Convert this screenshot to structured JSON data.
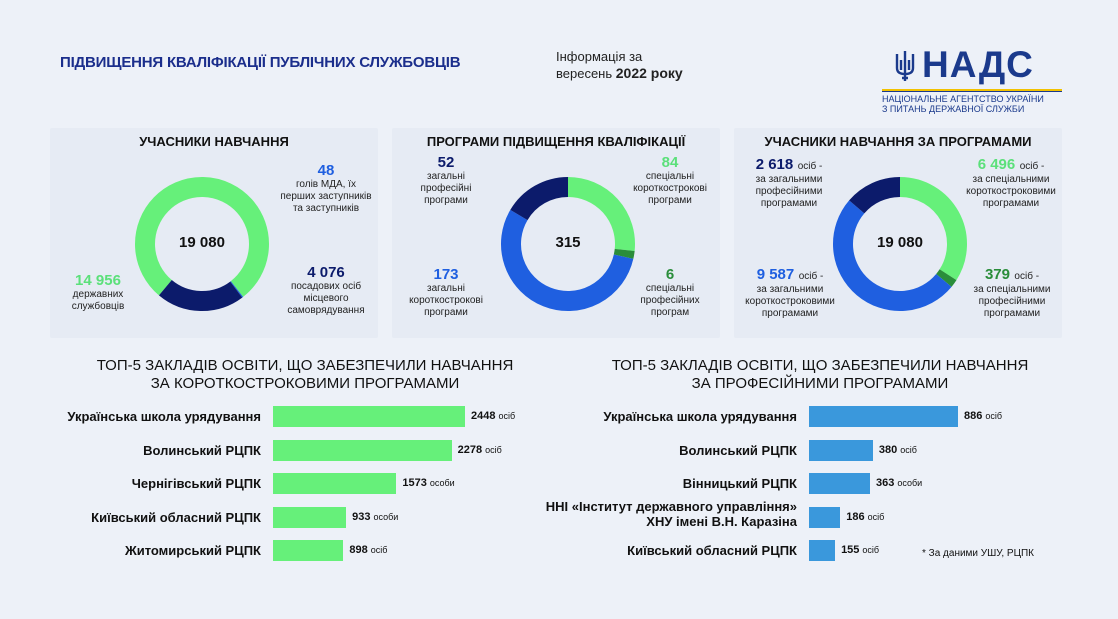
{
  "header": {
    "title": "ПІДВИЩЕННЯ КВАЛІФІКАЦІЇ ПУБЛІЧНИХ СЛУЖБОВЦІВ",
    "info_line1": "Інформація за",
    "info_line2_prefix": "вересень",
    "info_line2_bold": "2022 року"
  },
  "logo": {
    "word": "НАДС",
    "sub_line1": "НАЦІОНАЛЬНЕ АГЕНТСТВО УКРАЇНИ",
    "sub_line2": "З ПИТАНЬ ДЕРЖАВНОЇ СЛУЖБИ",
    "emblem": "trident-icon"
  },
  "colors": {
    "green": "#66f07a",
    "navy": "#0c1b6b",
    "blue": "#1f5fe0",
    "dark_green": "#2a8d3a",
    "light_blue_bar": "#3a98dc",
    "title_blue": "#1b2e8c"
  },
  "panels": {
    "participants": {
      "title": "УЧАСНИКИ НАВЧАННЯ",
      "total": "19 080",
      "items": [
        {
          "value": "48",
          "label": "голів МДА, їх перших заступників та заступників",
          "color": "#1f5fe0"
        },
        {
          "value": "4 076",
          "label": "посадових осіб місцевого самоврядування",
          "color": "#0c1b6b"
        },
        {
          "value": "14 956",
          "label": "державних службовців",
          "color": "#66f07a"
        }
      ]
    },
    "programs": {
      "title": "ПРОГРАМИ ПІДВИЩЕННЯ КВАЛІФІКАЦІЇ",
      "total": "315",
      "items": [
        {
          "value": "52",
          "label": "загальні професійні програми",
          "color": "#0c1b6b"
        },
        {
          "value": "84",
          "label": "спеціальні короткострокові програми",
          "color": "#66f07a"
        },
        {
          "value": "173",
          "label": "загальні короткострокові програми",
          "color": "#1f5fe0"
        },
        {
          "value": "6",
          "label": "спеціальні професійних програм",
          "color": "#2a8d3a"
        }
      ]
    },
    "by_programs": {
      "title": "УЧАСНИКИ НАВЧАННЯ ЗА ПРОГРАМАМИ",
      "total": "19 080",
      "unit": "осіб -",
      "items": [
        {
          "value": "2 618",
          "label": "за загальними професійними програмами",
          "color": "#0c1b6b"
        },
        {
          "value": "6 496",
          "label": "за спеціальними короткостроковими програмами",
          "color": "#66f07a"
        },
        {
          "value": "9 587",
          "label": "за загальними короткостроковими програмами",
          "color": "#1f5fe0"
        },
        {
          "value": "379",
          "label": "за спеціальними професійними програмами",
          "color": "#2a8d3a"
        }
      ]
    }
  },
  "chart_data": [
    {
      "type": "pie",
      "title": "УЧАСНИКИ НАВЧАННЯ",
      "categories": [
        "державних службовців",
        "голів МДА, їх перших заступників та заступників",
        "посадових осіб місцевого самоврядування"
      ],
      "values": [
        14956,
        48,
        4076
      ]
    },
    {
      "type": "pie",
      "title": "ПРОГРАМИ ПІДВИЩЕННЯ КВАЛІФІКАЦІЇ",
      "categories": [
        "спеціальні короткострокові програми",
        "спеціальні професійних програм",
        "загальні короткострокові програми",
        "загальні професійні програми"
      ],
      "values": [
        84,
        6,
        173,
        52
      ]
    },
    {
      "type": "pie",
      "title": "УЧАСНИКИ НАВЧАННЯ ЗА ПРОГРАМАМИ",
      "categories": [
        "за спеціальними короткостроковими програмами",
        "за спеціальними професійними програмами",
        "за загальними короткостроковими програмами",
        "за загальними професійними програмами"
      ],
      "values": [
        6496,
        379,
        9587,
        2618
      ]
    },
    {
      "type": "bar",
      "title": "ТОП-5 ЗАКЛАДІВ ОСВІТИ, ЩО ЗАБЕЗПЕЧИЛИ НАВЧАННЯ ЗА КОРОТКОСТРОКОВИМИ ПРОГРАМАМИ",
      "categories": [
        "Українська школа урядування",
        "Волинський РЦПК",
        "Чернігівський РЦПК",
        "Київський обласний РЦПК",
        "Житомирський РЦПК"
      ],
      "values": [
        2448,
        2278,
        1573,
        933,
        898
      ],
      "units": [
        "осіб",
        "осіб",
        "особи",
        "особи",
        "осіб"
      ]
    },
    {
      "type": "bar",
      "title": "ТОП-5 ЗАКЛАДІВ ОСВІТИ, ЩО ЗАБЕЗПЕЧИЛИ НАВЧАННЯ ЗА ПРОФЕСІЙНИМИ ПРОГРАМАМИ",
      "categories": [
        "Українська школа урядування",
        "Волинський РЦПК",
        "Вінницький РЦПК",
        "ННІ «Інститут державного управління» ХНУ імені В.Н. Каразіна",
        "Київський обласний РЦПК"
      ],
      "values": [
        886,
        380,
        363,
        186,
        155
      ],
      "units": [
        "осіб",
        "осіб",
        "особи",
        "осіб",
        "осіб"
      ]
    }
  ],
  "sections": {
    "short_title_1": "ТОП-5 ЗАКЛАДІВ ОСВІТИ, ЩО ЗАБЕЗПЕЧИЛИ НАВЧАННЯ",
    "short_title_2": "ЗА КОРОТКОСТРОКОВИМИ ПРОГРАМАМИ",
    "prof_title_1": "ТОП-5 ЗАКЛАДІВ ОСВІТИ, ЩО ЗАБЕЗПЕЧИЛИ НАВЧАННЯ",
    "prof_title_2": "ЗА ПРОФЕСІЙНИМИ ПРОГРАМАМИ"
  },
  "footnote": "* За даними УШУ, РЦПК"
}
